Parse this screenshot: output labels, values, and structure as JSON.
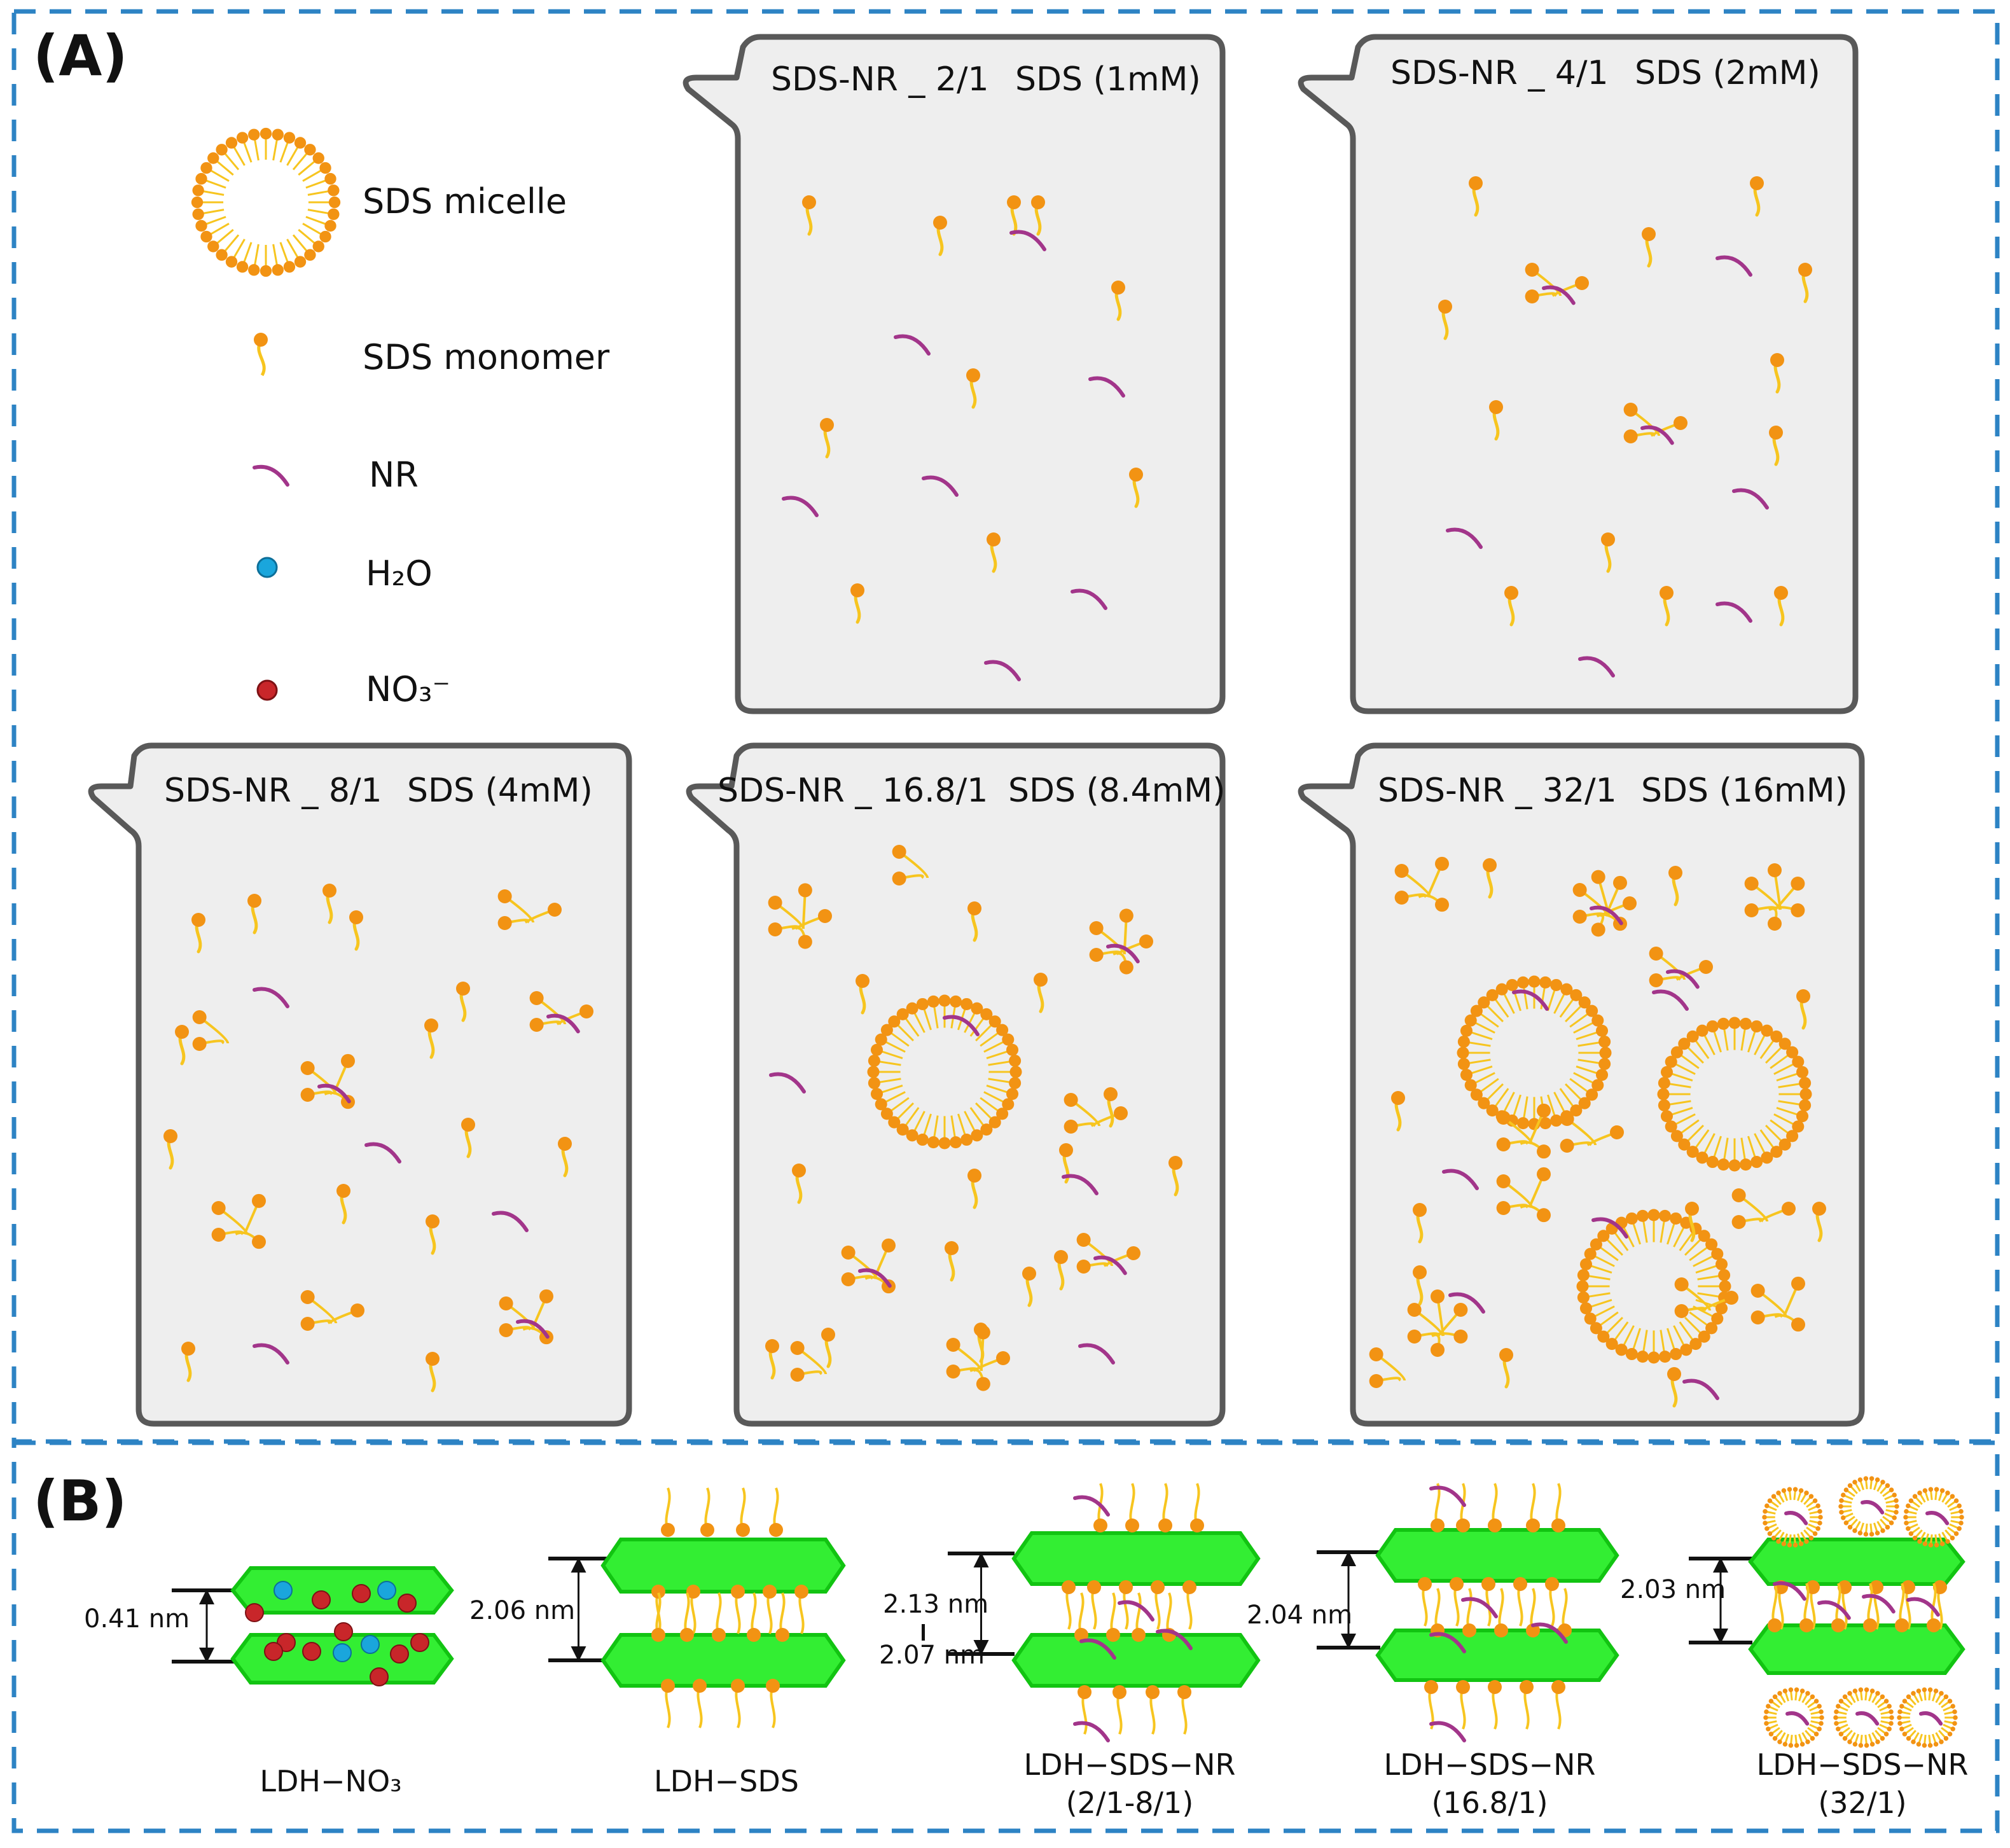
{
  "panel_a": {
    "label": "(A)",
    "legend": {
      "micelle": "SDS micelle",
      "monomer": "SDS monomer",
      "nr": "NR",
      "water": "H₂O",
      "nitrate": "NO₃⁻"
    },
    "beakers": [
      {
        "ratio": "SDS-NR _ 2/1",
        "conc": "SDS (1mM)"
      },
      {
        "ratio": "SDS-NR _ 4/1",
        "conc": "SDS (2mM)"
      },
      {
        "ratio": "SDS-NR _ 8/1",
        "conc": "SDS (4mM)"
      },
      {
        "ratio": "SDS-NR _ 16.8/1",
        "conc": "SDS (8.4mM)"
      },
      {
        "ratio": "SDS-NR _ 32/1",
        "conc": "SDS (16mM)"
      }
    ]
  },
  "panel_b": {
    "label": "(B)",
    "structures": [
      {
        "distances": [
          "0.41 nm"
        ],
        "caption": [
          "LDH−NO₃"
        ]
      },
      {
        "distances": [
          "2.06 nm"
        ],
        "caption": [
          "LDH−SDS"
        ]
      },
      {
        "distances": [
          "2.13 nm",
          "2.07 nm"
        ],
        "caption": [
          "LDH−SDS−NR",
          "(2/1-8/1)"
        ]
      },
      {
        "distances": [
          "2.04 nm"
        ],
        "caption": [
          "LDH−SDS−NR",
          "(16.8/1)"
        ]
      },
      {
        "distances": [
          "2.03 nm"
        ],
        "caption": [
          "LDH−SDS−NR",
          "(32/1)"
        ]
      }
    ]
  },
  "colors": {
    "frame": "#2d83c4",
    "beaker_fill": "#eeeeee",
    "beaker_stroke": "#595959",
    "sds_head": "#f29313",
    "sds_tail": "#f7c51f",
    "nr": "#a2358a",
    "water": "#1aa6dc",
    "nitrate": "#c8262a",
    "ldh_fill": "#33ee33",
    "ldh_stroke": "#12c412"
  }
}
